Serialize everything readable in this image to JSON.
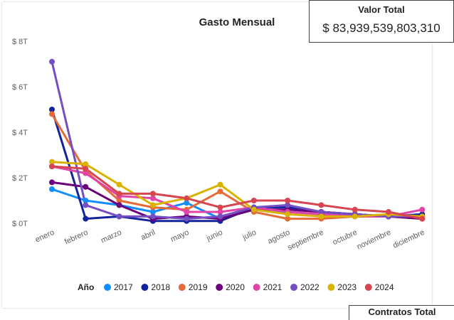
{
  "kpi": {
    "title": "Valor Total",
    "value": "$ 83,939,539,803,310"
  },
  "bottom_card": {
    "title": "Contratos Total"
  },
  "clipped_label": "201",
  "chart_data": {
    "type": "line",
    "title": "Gasto Mensual",
    "xlabel": "",
    "ylabel": "",
    "categories": [
      "enero",
      "febrero",
      "marzo",
      "abril",
      "mayo",
      "junio",
      "julio",
      "agosto",
      "septiembre",
      "octubre",
      "noviembre",
      "diciembre"
    ],
    "y_ticks": [
      0,
      2,
      4,
      6,
      8
    ],
    "y_tick_labels": [
      "$ 0T",
      "$ 2T",
      "$ 4T",
      "$ 6T",
      "$ 8T"
    ],
    "ylim": [
      0,
      8
    ],
    "grid": false,
    "legend": {
      "title": "Año",
      "position": "bottom"
    },
    "series": [
      {
        "name": "2017",
        "color": "#118DFF",
        "values": [
          1.5,
          1.0,
          0.8,
          0.5,
          0.9,
          0.2,
          0.6,
          0.5,
          0.4,
          0.4,
          0.3,
          0.3
        ]
      },
      {
        "name": "2018",
        "color": "#12239E",
        "values": [
          5.0,
          0.2,
          0.3,
          0.1,
          0.1,
          0.1,
          0.7,
          0.7,
          0.5,
          0.4,
          0.3,
          0.4
        ]
      },
      {
        "name": "2019",
        "color": "#E66C37",
        "values": [
          4.8,
          2.3,
          1.0,
          0.7,
          0.6,
          1.4,
          0.5,
          0.2,
          0.2,
          0.3,
          0.3,
          0.2
        ]
      },
      {
        "name": "2020",
        "color": "#6B007B",
        "values": [
          1.8,
          1.6,
          0.8,
          0.2,
          0.3,
          0.2,
          0.6,
          0.6,
          0.5,
          0.4,
          0.3,
          0.2
        ]
      },
      {
        "name": "2021",
        "color": "#E044A7",
        "values": [
          2.5,
          2.2,
          1.2,
          1.1,
          0.5,
          0.5,
          0.7,
          0.5,
          0.4,
          0.3,
          0.3,
          0.6
        ]
      },
      {
        "name": "2022",
        "color": "#744EC2",
        "values": [
          7.1,
          0.8,
          0.3,
          0.3,
          0.2,
          0.3,
          0.7,
          0.8,
          0.5,
          0.4,
          0.3,
          0.3
        ]
      },
      {
        "name": "2023",
        "color": "#D9B300",
        "values": [
          2.7,
          2.6,
          1.7,
          0.8,
          1.1,
          1.7,
          0.6,
          0.4,
          0.3,
          0.3,
          0.4,
          0.3
        ]
      },
      {
        "name": "2024",
        "color": "#D64550",
        "values": [
          2.5,
          2.4,
          1.3,
          1.3,
          1.1,
          0.7,
          1.0,
          1.0,
          0.8,
          0.6,
          0.5,
          0.2
        ]
      }
    ]
  }
}
